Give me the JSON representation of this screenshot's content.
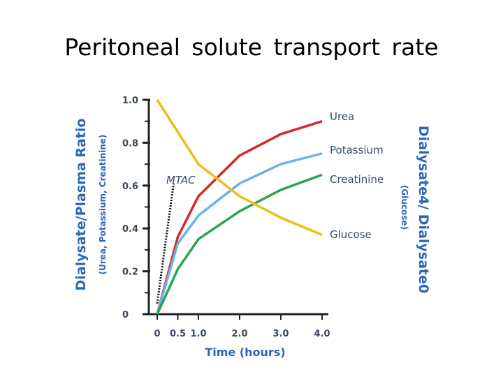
{
  "title": "Peritoneal solute transport rate",
  "chart_data": {
    "type": "line",
    "title": "Peritoneal solute transport rate",
    "xlabel": "Time (hours)",
    "ylabel": "Dialysate/Plasma Ratio",
    "ylabel_sub": "(Urea, Potassium, Creatinine)",
    "y2label": "Dialysate4/ Dialysate0",
    "y2label_sub": "(Glucose)",
    "xlim": [
      0,
      4.0
    ],
    "ylim": [
      0,
      1.0
    ],
    "x_ticks": [
      "0",
      "0.5",
      "1.0",
      "2.0",
      "3.0",
      "4.0"
    ],
    "y_ticks": [
      "0",
      "0.2",
      "0.4",
      "0.6",
      "0.8",
      "1.0"
    ],
    "grid": false,
    "legend": "right",
    "series": [
      {
        "name": "Urea",
        "color": "#d42a2a",
        "x": [
          0,
          0.5,
          1.0,
          2.0,
          3.0,
          4.0
        ],
        "y": [
          0,
          0.36,
          0.55,
          0.74,
          0.84,
          0.9
        ]
      },
      {
        "name": "Potassium",
        "color": "#6ab4e6",
        "x": [
          0,
          0.5,
          1.0,
          2.0,
          3.0,
          4.0
        ],
        "y": [
          0,
          0.33,
          0.46,
          0.61,
          0.7,
          0.75
        ]
      },
      {
        "name": "Creatinine",
        "color": "#27a651",
        "x": [
          0,
          0.5,
          1.0,
          2.0,
          3.0,
          4.0
        ],
        "y": [
          0,
          0.21,
          0.35,
          0.48,
          0.58,
          0.65
        ]
      },
      {
        "name": "Glucose",
        "color": "#f1bc1a",
        "x": [
          0,
          1.0,
          2.0,
          3.0,
          4.0
        ],
        "y": [
          1.0,
          0.7,
          0.55,
          0.45,
          0.37
        ]
      }
    ],
    "annotation": {
      "text": "MTAC",
      "x": [
        0,
        0.4
      ],
      "y": [
        0.05,
        0.61
      ]
    }
  }
}
